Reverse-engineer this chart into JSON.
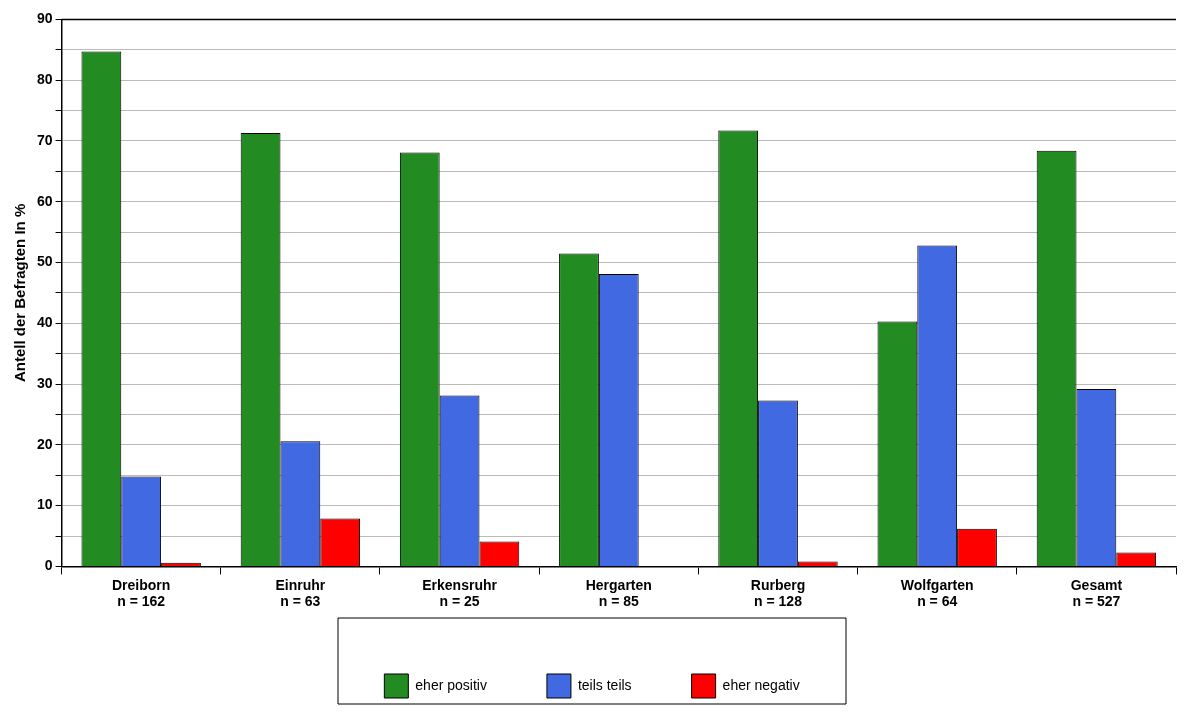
{
  "chart_data": {
    "type": "bar",
    "ylabel": "Antell der Befragten In %",
    "categories": [
      "Dreiborn\nn = 162",
      "Einruhr\nn = 63",
      "Erkensruhr\nn = 25",
      "Hergarten\nn = 85",
      "Rurberg\nn = 128",
      "Wolfgarten\nn = 64",
      "Gesamt\nn = 527"
    ],
    "series": [
      {
        "name": "eher positiv",
        "color": "#228b22",
        "values": [
          84.7,
          71.3,
          68.1,
          51.5,
          71.7,
          40.3,
          68.4
        ]
      },
      {
        "name": "teils teils",
        "color": "#4169e1",
        "values": [
          14.8,
          20.6,
          28.1,
          48.1,
          27.3,
          52.8,
          29.2
        ]
      },
      {
        "name": "eher negativ",
        "color": "#ff0000",
        "values": [
          0.6,
          7.9,
          4.1,
          0,
          0.8,
          6.2,
          2.3
        ]
      }
    ],
    "ylim": [
      0,
      90
    ],
    "yticks": [
      0,
      {
        "value": 5,
        "label": null
      },
      10,
      {
        "value": 15,
        "label": null
      },
      20,
      {
        "value": 25,
        "label": null
      },
      30,
      {
        "value": 35,
        "label": null
      },
      40,
      {
        "value": 45,
        "label": null
      },
      50,
      {
        "value": 55,
        "label": null
      },
      60,
      {
        "value": 65,
        "label": null
      },
      70,
      {
        "value": 75,
        "label": null
      },
      80,
      {
        "value": 85,
        "label": null
      },
      90
    ],
    "grid": "y",
    "legend": "bottom"
  }
}
